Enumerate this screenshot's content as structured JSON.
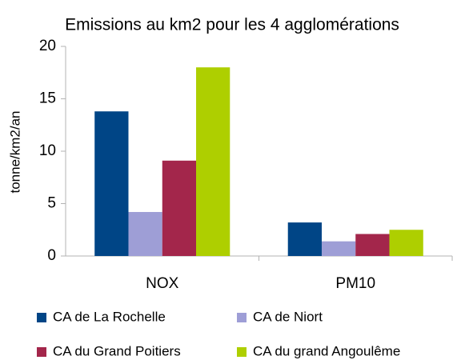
{
  "chart_data": {
    "type": "bar",
    "title": "Emissions au km2 pour les 4 agglomérations",
    "y_label": "tonne/km2/an",
    "categories": [
      "NOX",
      "PM10"
    ],
    "series": [
      {
        "name": "CA de La Rochelle",
        "color": "#004586",
        "values": [
          13.8,
          3.2
        ]
      },
      {
        "name": "CA de Niort",
        "color": "#9e9ed6",
        "values": [
          4.2,
          1.4
        ]
      },
      {
        "name": "CA du Grand Poitiers",
        "color": "#a3264b",
        "values": [
          9.1,
          2.1
        ]
      },
      {
        "name": "CA du grand Angoulême",
        "color": "#aecf00",
        "values": [
          18.0,
          2.5
        ]
      }
    ],
    "ylim": [
      0,
      20
    ],
    "yticks": [
      0,
      5,
      10,
      15,
      20
    ],
    "grid": false,
    "legend": "bottom"
  }
}
